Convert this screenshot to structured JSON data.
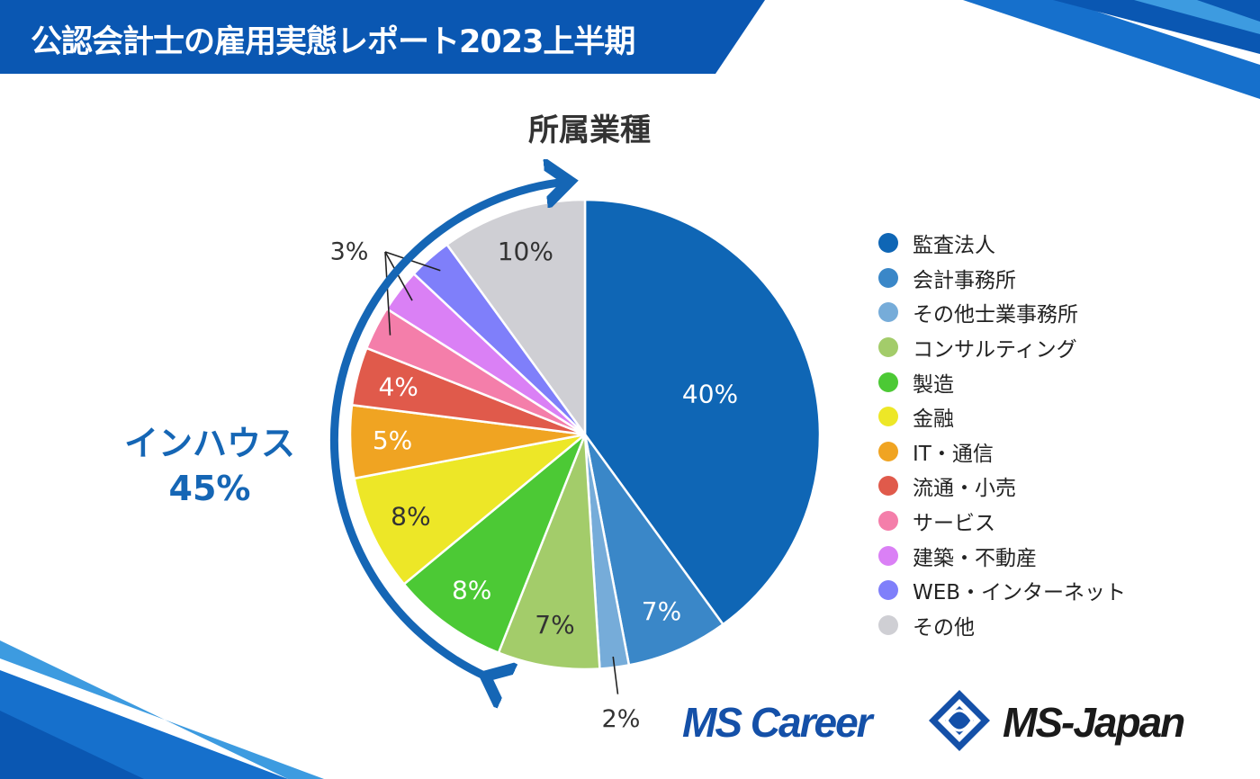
{
  "header": {
    "title": "公認会計士の雇用実態レポート2023上半期"
  },
  "chart_data": {
    "type": "pie",
    "title": "所属業種",
    "unit": "%",
    "slices": [
      {
        "label": "監査法人",
        "value": 40,
        "color": "#0f66b5",
        "value_label": "40%"
      },
      {
        "label": "会計事務所",
        "value": 7,
        "color": "#3a87c8",
        "value_label": "7%"
      },
      {
        "label": "その他士業事務所",
        "value": 2,
        "color": "#76acd9",
        "value_label": "2%"
      },
      {
        "label": "コンサルティング",
        "value": 7,
        "color": "#a3cc6a",
        "value_label": "7%"
      },
      {
        "label": "製造",
        "value": 8,
        "color": "#4cc935",
        "value_label": "8%"
      },
      {
        "label": "金融",
        "value": 8,
        "color": "#ede727",
        "value_label": "8%"
      },
      {
        "label": "IT・通信",
        "value": 5,
        "color": "#f0a422",
        "value_label": "5%"
      },
      {
        "label": "流通・小売",
        "value": 4,
        "color": "#e05a4b",
        "value_label": "4%"
      },
      {
        "label": "サービス",
        "value": 3,
        "color": "#f47eaa",
        "value_label": ""
      },
      {
        "label": "建築・不動産",
        "value": 3,
        "color": "#da80f5",
        "value_label": ""
      },
      {
        "label": "WEB・インターネット",
        "value": 3,
        "color": "#7f7ffa",
        "value_label": ""
      },
      {
        "label": "その他",
        "value": 10,
        "color": "#cfcfd4",
        "value_label": "10%"
      }
    ],
    "grouped_annotation": {
      "label": "インハウス",
      "value_label": "45%"
    },
    "small_slice_label": "3%",
    "legend_position": "right"
  },
  "brands": {
    "left": "MS Career",
    "right": "MS-Japan"
  }
}
